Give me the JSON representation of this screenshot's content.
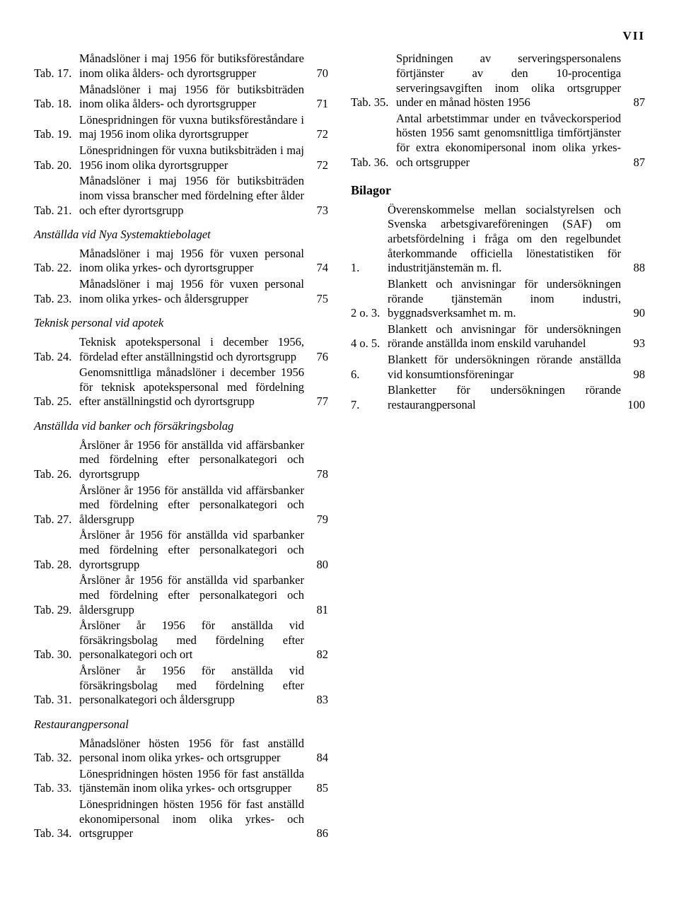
{
  "pageNumber": "VII",
  "sections": [
    {
      "entries": [
        {
          "label": "Tab. 17.",
          "desc": "Månadslöner i maj 1956 för butiksföreståndare inom olika ålders- och dyrortsgrupper",
          "page": "70"
        },
        {
          "label": "Tab. 18.",
          "desc": "Månadslöner i maj 1956 för butiksbiträden inom olika ålders- och dyrortsgrupper",
          "page": "71"
        },
        {
          "label": "Tab. 19.",
          "desc": "Lönespridningen för vuxna butiksföreståndare i maj 1956 inom olika dyrortsgrupper",
          "page": "72"
        },
        {
          "label": "Tab. 20.",
          "desc": "Lönespridningen för vuxna butiksbiträden i maj 1956 inom olika dyrortsgrupper",
          "page": "72"
        },
        {
          "label": "Tab. 21.",
          "desc": "Månadslöner i maj 1956 för butiksbiträden inom vissa branscher med fördelning efter ålder och efter dyrortsgrupp",
          "page": "73"
        }
      ]
    },
    {
      "heading": "Anställda vid Nya Systemaktiebolaget",
      "entries": [
        {
          "label": "Tab. 22.",
          "desc": "Månadslöner i maj 1956 för vuxen personal inom olika yrkes- och dyrortsgrupper",
          "page": "74"
        },
        {
          "label": "Tab. 23.",
          "desc": "Månadslöner i maj 1956 för vuxen personal inom olika yrkes- och åldersgrupper",
          "page": "75"
        }
      ]
    },
    {
      "heading": "Teknisk personal vid apotek",
      "entries": [
        {
          "label": "Tab. 24.",
          "desc": "Teknisk apotekspersonal i december 1956, fördelad efter anställningstid och dyrortsgrupp",
          "page": "76"
        },
        {
          "label": "Tab. 25.",
          "desc": "Genomsnittliga månadslöner i december 1956 för teknisk apotekspersonal med fördelning efter anställningstid och dyrortsgrupp",
          "page": "77"
        }
      ]
    },
    {
      "heading": "Anställda vid banker och försäkringsbolag",
      "entries": [
        {
          "label": "Tab. 26.",
          "desc": "Årslöner år 1956 för anställda vid affärsbanker med fördelning efter personalkategori och dyrortsgrupp",
          "page": "78"
        },
        {
          "label": "Tab. 27.",
          "desc": "Årslöner år 1956 för anställda vid affärsbanker med fördelning efter personalkategori och åldersgrupp",
          "page": "79"
        },
        {
          "label": "Tab. 28.",
          "desc": "Årslöner år 1956 för anställda vid sparbanker med fördelning efter personalkategori och dyrortsgrupp",
          "page": "80"
        },
        {
          "label": "Tab. 29.",
          "desc": "Årslöner år 1956 för anställda vid sparbanker med fördelning efter personalkategori och åldersgrupp",
          "page": "81"
        },
        {
          "label": "Tab. 30.",
          "desc": "Årslöner år 1956 för anställda vid försäkringsbolag med fördelning efter personalkategori och ort",
          "page": "82"
        },
        {
          "label": "Tab. 31.",
          "desc": "Årslöner år 1956 för anställda vid försäkringsbolag med fördelning efter personalkategori och åldersgrupp",
          "page": "83"
        }
      ]
    },
    {
      "heading": "Restaurangpersonal",
      "entries": [
        {
          "label": "Tab. 32.",
          "desc": "Månadslöner hösten 1956 för fast anställd personal inom olika yrkes- och ortsgrupper",
          "page": "84"
        },
        {
          "label": "Tab. 33.",
          "desc": "Lönespridningen hösten 1956 för fast anställda tjänstemän inom olika yrkes- och ortsgrupper",
          "page": "85"
        },
        {
          "label": "Tab. 34.",
          "desc": "Lönespridningen hösten 1956 för fast anställd ekonomipersonal inom olika yrkes- och ortsgrupper",
          "page": "86"
        },
        {
          "label": "Tab. 35.",
          "desc": "Spridningen av serveringspersonalens förtjänster av den 10-procentiga serveringsavgiften inom olika ortsgrupper under en månad hösten 1956",
          "page": "87"
        },
        {
          "label": "Tab. 36.",
          "desc": "Antal arbetstimmar under en tvåveckorsperiod hösten 1956 samt genomsnittliga timförtjänster för extra ekonomipersonal inom olika yrkes- och ortsgrupper",
          "page": "87"
        }
      ]
    },
    {
      "heading": "Bilagor",
      "bold": true,
      "bil": true,
      "entries": [
        {
          "label": "1.",
          "desc": "Överenskommelse mellan socialstyrelsen och Svenska arbetsgivareföreningen (SAF) om arbetsfördelning i fråga om den regelbundet återkommande officiella lönestatistiken för industritjänstemän m. fl.",
          "page": "88"
        },
        {
          "label": "2 o. 3.",
          "desc": "Blankett och anvisningar för undersökningen rörande tjänstemän inom industri, byggnadsverksamhet m. m.",
          "page": "90"
        },
        {
          "label": "4 o. 5.",
          "desc": "Blankett och anvisningar för undersökningen rörande anställda inom enskild varuhandel",
          "page": "93"
        },
        {
          "label": "6.",
          "desc": "Blankett för undersökningen rörande anställda vid konsumtionsföreningar",
          "page": "98"
        },
        {
          "label": "7.",
          "desc": "Blanketter för undersökningen rörande restaurangpersonal",
          "page": "100"
        }
      ]
    }
  ]
}
